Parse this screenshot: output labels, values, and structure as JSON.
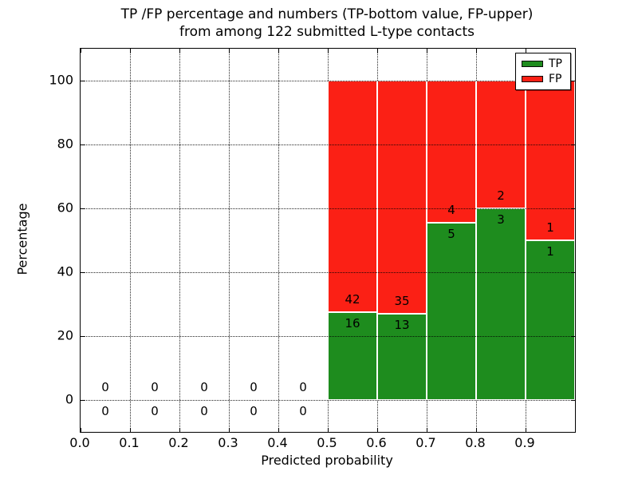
{
  "figure": {
    "title_line1": "TP /FP percentage and numbers (TP-bottom value, FP-upper)",
    "title_line2": "from among 122 submitted L-type contacts",
    "xlabel": "Predicted probability",
    "ylabel": "Percentage"
  },
  "colors": {
    "tp": "#1e8c1e",
    "fp": "#fb2015",
    "grid": "#000000",
    "background": "#ffffff",
    "bar_edge": "#ffffff"
  },
  "legend": {
    "position": "upper right",
    "entries": [
      {
        "label": "TP",
        "color": "#1e8c1e",
        "swatch": "green-swatch"
      },
      {
        "label": "FP",
        "color": "#fb2015",
        "swatch": "red-swatch"
      }
    ]
  },
  "chart_data": {
    "type": "bar",
    "stacked": true,
    "title": "TP /FP percentage and numbers (TP-bottom value, FP-upper) from among 122 submitted L-type contacts",
    "xlabel": "Predicted probability",
    "ylabel": "Percentage",
    "xlim": [
      0.0,
      1.0
    ],
    "ylim": [
      -10,
      110
    ],
    "xtick_values": [
      0.0,
      0.1,
      0.2,
      0.3,
      0.4,
      0.5,
      0.6,
      0.7,
      0.8,
      0.9
    ],
    "xtick_labels": [
      "0.0",
      "0.1",
      "0.2",
      "0.3",
      "0.4",
      "0.5",
      "0.6",
      "0.7",
      "0.8",
      "0.9"
    ],
    "ytick_values": [
      0,
      20,
      40,
      60,
      80,
      100
    ],
    "ytick_labels": [
      "0",
      "20",
      "40",
      "60",
      "80",
      "100"
    ],
    "grid": true,
    "grid_style": "dotted",
    "total_submitted": 122,
    "series_note": "TP count labeled below segment boundary, FP count labeled above",
    "bins": [
      {
        "range": [
          0.0,
          0.1
        ],
        "tp": 0,
        "fp": 0,
        "tp_pct": 0,
        "fp_pct": 0
      },
      {
        "range": [
          0.1,
          0.2
        ],
        "tp": 0,
        "fp": 0,
        "tp_pct": 0,
        "fp_pct": 0
      },
      {
        "range": [
          0.2,
          0.3
        ],
        "tp": 0,
        "fp": 0,
        "tp_pct": 0,
        "fp_pct": 0
      },
      {
        "range": [
          0.3,
          0.4
        ],
        "tp": 0,
        "fp": 0,
        "tp_pct": 0,
        "fp_pct": 0
      },
      {
        "range": [
          0.4,
          0.5
        ],
        "tp": 0,
        "fp": 0,
        "tp_pct": 0,
        "fp_pct": 0
      },
      {
        "range": [
          0.5,
          0.6
        ],
        "tp": 16,
        "fp": 42,
        "tp_pct": 27.59,
        "fp_pct": 72.41
      },
      {
        "range": [
          0.6,
          0.7
        ],
        "tp": 13,
        "fp": 35,
        "tp_pct": 27.08,
        "fp_pct": 72.92
      },
      {
        "range": [
          0.7,
          0.8
        ],
        "tp": 5,
        "fp": 4,
        "tp_pct": 55.56,
        "fp_pct": 44.44
      },
      {
        "range": [
          0.8,
          0.9
        ],
        "tp": 3,
        "fp": 2,
        "tp_pct": 60.0,
        "fp_pct": 40.0
      },
      {
        "range": [
          0.9,
          1.0
        ],
        "tp": 1,
        "fp": 1,
        "tp_pct": 50.0,
        "fp_pct": 50.0
      }
    ]
  }
}
